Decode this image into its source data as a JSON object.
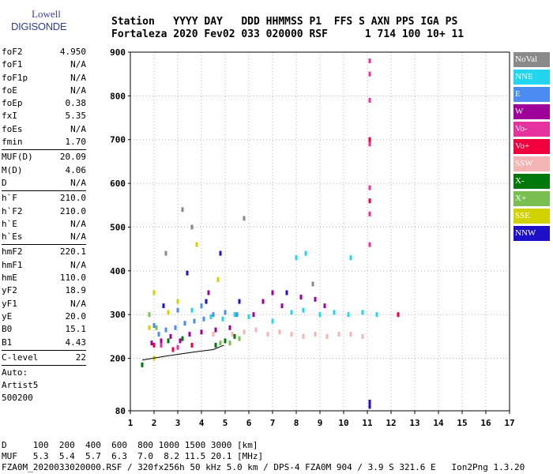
{
  "logo": {
    "line1": "Lowell",
    "line2": "DIGISONDE"
  },
  "header": {
    "labels": "Station   YYYY DAY   DDD HHMMSS P1  FFS S AXN PPS IGA PS",
    "values": "Fortaleza 2020 Fev02 033 020000 RSF      1 714 100 10+ 11"
  },
  "params": {
    "group1": [
      {
        "k": "foF2",
        "v": "4.950"
      },
      {
        "k": "foF1",
        "v": "N/A"
      },
      {
        "k": "foF1p",
        "v": "N/A"
      },
      {
        "k": "foE",
        "v": "N/A"
      },
      {
        "k": "foEp",
        "v": "0.38"
      },
      {
        "k": "fxI",
        "v": "5.35"
      },
      {
        "k": "foEs",
        "v": "N/A"
      },
      {
        "k": "fmin",
        "v": "1.70"
      }
    ],
    "group2": [
      {
        "k": "MUF(D)",
        "v": "20.09"
      },
      {
        "k": "M(D)",
        "v": "4.06"
      },
      {
        "k": "D",
        "v": "N/A"
      }
    ],
    "group3": [
      {
        "k": "h`F",
        "v": "210.0"
      },
      {
        "k": "h`F2",
        "v": "210.0"
      },
      {
        "k": "h`E",
        "v": "N/A"
      },
      {
        "k": "h`Es",
        "v": "N/A"
      }
    ],
    "group4": [
      {
        "k": "hmF2",
        "v": "220.1"
      },
      {
        "k": "hmF1",
        "v": "N/A"
      },
      {
        "k": "hmE",
        "v": "110.0"
      },
      {
        "k": "yF2",
        "v": "18.9"
      },
      {
        "k": "yF1",
        "v": "N/A"
      },
      {
        "k": "yE",
        "v": "20.0"
      },
      {
        "k": "B0",
        "v": "15.1"
      },
      {
        "k": "B1",
        "v": "4.43"
      }
    ],
    "group5": [
      {
        "k": "C-level",
        "v": "22"
      }
    ],
    "tail": [
      "Auto:",
      "Artist5",
      "500200"
    ]
  },
  "legend": [
    {
      "label": "NoVal",
      "color": "#8a8a8a"
    },
    {
      "label": "NNE",
      "color": "#22d6f0"
    },
    {
      "label": "E",
      "color": "#4a8cf0"
    },
    {
      "label": "W",
      "color": "#a0009a"
    },
    {
      "label": "Vo-",
      "color": "#e6329e"
    },
    {
      "label": "Vo+",
      "color": "#f0003c"
    },
    {
      "label": "SSW",
      "color": "#f5b4b4"
    },
    {
      "label": "X-",
      "color": "#00780a"
    },
    {
      "label": "X+",
      "color": "#78be50"
    },
    {
      "label": "SSE",
      "color": "#d2d200"
    },
    {
      "label": "NNW",
      "color": "#1e10c8"
    }
  ],
  "bottom": {
    "line1": "D     100  200  400  600  800 1000 1500 3000 [km]",
    "line2": "MUF   5.3  5.4  5.7  6.3  7.0  8.2 11.5 20.1 [MHz]",
    "line3": "FZA0M_2020033020000.RSF / 320fx256h 50 kHz 5.0 km / DPS-4 FZA0M 904 / 3.9 S 321.6 E   Ion2Png 1.3.20"
  },
  "chart_data": {
    "type": "scatter",
    "title": "",
    "xlabel": "",
    "ylabel": "",
    "xlim": [
      1,
      17
    ],
    "ylim": [
      80,
      900
    ],
    "xticks": [
      1,
      2,
      3,
      4,
      5,
      6,
      7,
      8,
      9,
      10,
      11,
      12,
      13,
      14,
      15,
      16,
      17
    ],
    "yticks": [
      80,
      200,
      300,
      400,
      500,
      600,
      700,
      800,
      900
    ],
    "grid": "dotted",
    "legend_position": "right",
    "series": [
      {
        "name": "NNE",
        "color": "#22d6f0",
        "points": [
          [
            4.9,
            290
          ],
          [
            5.4,
            300
          ],
          [
            6.0,
            295
          ],
          [
            7.0,
            285
          ],
          [
            7.8,
            305
          ],
          [
            8.3,
            310
          ],
          [
            9.0,
            300
          ],
          [
            9.6,
            305
          ],
          [
            10.2,
            300
          ],
          [
            10.8,
            305
          ],
          [
            11.4,
            300
          ],
          [
            8.0,
            430
          ],
          [
            8.4,
            440
          ],
          [
            10.3,
            430
          ],
          [
            4.4,
            295
          ],
          [
            3.6,
            310
          ]
        ]
      },
      {
        "name": "E",
        "color": "#4a8cf0",
        "points": [
          [
            2.2,
            255
          ],
          [
            2.5,
            265
          ],
          [
            2.9,
            270
          ],
          [
            3.3,
            280
          ],
          [
            3.7,
            285
          ],
          [
            4.1,
            290
          ],
          [
            4.5,
            300
          ],
          [
            5.0,
            305
          ],
          [
            5.5,
            300
          ],
          [
            3.0,
            310
          ],
          [
            4.0,
            320
          ],
          [
            2.0,
            275
          ]
        ]
      },
      {
        "name": "W",
        "color": "#a0009a",
        "points": [
          [
            1.9,
            235
          ],
          [
            2.3,
            240
          ],
          [
            2.7,
            250
          ],
          [
            3.1,
            240
          ],
          [
            3.5,
            255
          ],
          [
            4.0,
            260
          ],
          [
            4.6,
            265
          ],
          [
            5.2,
            270
          ],
          [
            6.6,
            330
          ],
          [
            7.0,
            350
          ],
          [
            7.4,
            320
          ],
          [
            8.2,
            340
          ],
          [
            8.8,
            335
          ],
          [
            9.2,
            320
          ],
          [
            6.2,
            300
          ],
          [
            4.3,
            350
          ]
        ]
      },
      {
        "name": "Vo-",
        "color": "#e6329e",
        "points": [
          [
            11.1,
            880
          ],
          [
            11.1,
            850
          ],
          [
            11.1,
            790
          ],
          [
            11.1,
            690
          ],
          [
            11.1,
            590
          ],
          [
            11.1,
            530
          ],
          [
            11.1,
            460
          ],
          [
            2.3,
            230
          ],
          [
            3.0,
            225
          ]
        ]
      },
      {
        "name": "Vo+",
        "color": "#f0003c",
        "points": [
          [
            12.3,
            300
          ],
          [
            11.1,
            560
          ],
          [
            11.1,
            700
          ],
          [
            2.0,
            230
          ],
          [
            2.8,
            220
          ],
          [
            3.6,
            230
          ]
        ]
      },
      {
        "name": "SSW",
        "color": "#f5b4b4",
        "points": [
          [
            5.3,
            255
          ],
          [
            5.8,
            260
          ],
          [
            6.3,
            265
          ],
          [
            6.8,
            255
          ],
          [
            7.3,
            260
          ],
          [
            7.8,
            255
          ],
          [
            8.3,
            250
          ],
          [
            8.8,
            255
          ],
          [
            9.3,
            250
          ],
          [
            9.8,
            255
          ],
          [
            10.3,
            255
          ],
          [
            10.8,
            250
          ],
          [
            4.5,
            255
          ]
        ]
      },
      {
        "name": "X-",
        "color": "#00780a",
        "points": [
          [
            1.5,
            185
          ],
          [
            4.6,
            230
          ],
          [
            5.0,
            240
          ],
          [
            2.6,
            240
          ],
          [
            3.2,
            245
          ],
          [
            5.4,
            250
          ]
        ]
      },
      {
        "name": "X+",
        "color": "#78be50",
        "points": [
          [
            4.8,
            235
          ],
          [
            5.2,
            235
          ],
          [
            5.6,
            245
          ],
          [
            2.1,
            270
          ],
          [
            1.8,
            300
          ]
        ]
      },
      {
        "name": "SSE",
        "color": "#d2d200",
        "points": [
          [
            1.8,
            270
          ],
          [
            2.6,
            305
          ],
          [
            3.0,
            330
          ],
          [
            2.0,
            350
          ],
          [
            2.0,
            200
          ],
          [
            3.8,
            460
          ],
          [
            4.7,
            380
          ]
        ]
      },
      {
        "name": "NNW",
        "color": "#1e10c8",
        "points": [
          [
            11.1,
            90
          ],
          [
            11.1,
            100
          ],
          [
            3.4,
            395
          ],
          [
            4.2,
            330
          ],
          [
            4.8,
            440
          ],
          [
            2.4,
            320
          ],
          [
            5.6,
            330
          ],
          [
            7.6,
            350
          ]
        ]
      },
      {
        "name": "NoVal",
        "color": "#8a8a8a",
        "points": [
          [
            3.2,
            540
          ],
          [
            3.6,
            500
          ],
          [
            5.8,
            520
          ],
          [
            2.5,
            440
          ],
          [
            8.7,
            370
          ]
        ]
      }
    ],
    "profile_curve": [
      [
        1.5,
        196
      ],
      [
        2.5,
        205
      ],
      [
        3.5,
        213
      ],
      [
        4.5,
        220
      ],
      [
        4.95,
        230
      ]
    ]
  }
}
